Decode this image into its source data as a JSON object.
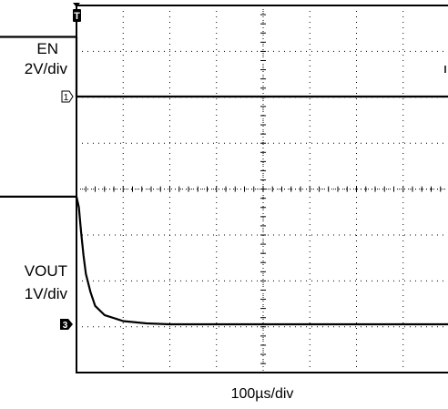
{
  "chart_data": {
    "type": "line",
    "title": "",
    "time_scale_label": "100µs/div",
    "trigger_marker": "T",
    "x_unit": "µs",
    "x_range": [
      -200,
      1000
    ],
    "trigger_time_us": 0,
    "series": [
      {
        "name": "EN",
        "scale_label": "2V/div",
        "channel_marker": "1",
        "volts_per_div": 2,
        "points": [
          [
            -200,
            2.6
          ],
          [
            0,
            2.6
          ],
          [
            0,
            0
          ],
          [
            1000,
            0
          ]
        ]
      },
      {
        "name": "VOUT",
        "scale_label": "1V/div",
        "channel_marker": "3",
        "volts_per_div": 1,
        "points": [
          [
            -200,
            2.78
          ],
          [
            0,
            2.78
          ],
          [
            5,
            2.55
          ],
          [
            10,
            2.0
          ],
          [
            15,
            1.5
          ],
          [
            20,
            1.1
          ],
          [
            30,
            0.7
          ],
          [
            40,
            0.4
          ],
          [
            60,
            0.2
          ],
          [
            100,
            0.07
          ],
          [
            150,
            0.02
          ],
          [
            200,
            0.0
          ],
          [
            1000,
            0.0
          ]
        ]
      }
    ]
  }
}
